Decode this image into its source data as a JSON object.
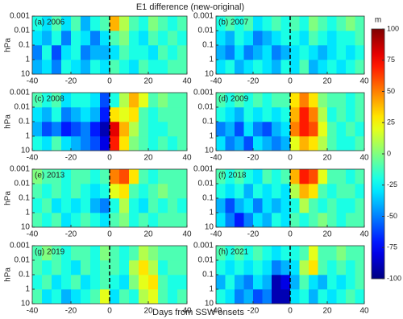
{
  "chart_data": {
    "type": "heatmap",
    "title": "E1 difference (new-original)",
    "xlabel": "Days from SSW onsets",
    "ylabel": "hPa",
    "x_edges": [
      -40,
      -35,
      -30,
      -25,
      -20,
      -15,
      -10,
      -5,
      0,
      5,
      10,
      15,
      20,
      25,
      30,
      35,
      40
    ],
    "y_edges": [
      10,
      1,
      0.1,
      0.01,
      0.001
    ],
    "xlim": [
      -40,
      40
    ],
    "ylim": [
      10,
      0.001
    ],
    "ylog": true,
    "xticks": [
      -40,
      -20,
      0,
      20,
      40
    ],
    "yticks": [
      0.001,
      0.01,
      0.1,
      1,
      10
    ],
    "vline": 0,
    "colormap": "jet",
    "colorbar": {
      "label": "m",
      "clim": [
        -100,
        100
      ],
      "ticks": [
        100,
        75,
        50,
        25,
        0,
        -25,
        -50,
        -75,
        -100
      ]
    },
    "panels": [
      {
        "label": "(a) 2006",
        "z": [
          [
            -40,
            -30,
            -50,
            -20,
            -30,
            -40,
            -20,
            -30,
            -10,
            -20,
            -30,
            -10,
            -20,
            -20,
            -10,
            -10
          ],
          [
            -50,
            -20,
            -60,
            -30,
            -20,
            -50,
            -40,
            -40,
            -30,
            -10,
            -20,
            -20,
            -30,
            -10,
            -20,
            -10
          ],
          [
            -30,
            -40,
            -20,
            -50,
            -20,
            -30,
            -50,
            -30,
            -10,
            0,
            -20,
            -30,
            -10,
            -20,
            -10,
            -20
          ],
          [
            -20,
            -30,
            -10,
            -30,
            -10,
            -40,
            -20,
            -10,
            40,
            10,
            -10,
            -20,
            0,
            -10,
            -20,
            -10
          ]
        ]
      },
      {
        "label": "(b) 2007",
        "z": [
          [
            -30,
            -20,
            -40,
            -30,
            -20,
            -30,
            -40,
            -20,
            -30,
            -10,
            -40,
            -30,
            -20,
            -30,
            -20,
            -10
          ],
          [
            -40,
            -50,
            -30,
            -50,
            -40,
            -30,
            -50,
            -40,
            -30,
            -20,
            -30,
            -40,
            -30,
            -20,
            -30,
            -20
          ],
          [
            -30,
            -40,
            -20,
            -30,
            -50,
            -40,
            -30,
            -20,
            -20,
            -30,
            -10,
            -20,
            -30,
            -20,
            -20,
            -10
          ],
          [
            -20,
            -10,
            -20,
            -10,
            -30,
            -20,
            -10,
            -20,
            -10,
            -20,
            0,
            -10,
            -20,
            -10,
            0,
            -10
          ]
        ]
      },
      {
        "label": "(c) 2008",
        "z": [
          [
            -20,
            -30,
            -10,
            -30,
            -40,
            -50,
            -60,
            -80,
            70,
            30,
            0,
            -10,
            -20,
            -10,
            -20,
            -10
          ],
          [
            -40,
            -60,
            -50,
            -70,
            -60,
            -50,
            -70,
            -90,
            80,
            40,
            10,
            -10,
            -20,
            -20,
            -10,
            -10
          ],
          [
            -30,
            -40,
            -20,
            -50,
            -40,
            -30,
            -40,
            -70,
            30,
            20,
            30,
            -10,
            -20,
            -10,
            -10,
            -10
          ],
          [
            -10,
            -20,
            -10,
            -30,
            -20,
            -20,
            -30,
            -60,
            -20,
            10,
            40,
            20,
            -10,
            0,
            -10,
            -10
          ]
        ]
      },
      {
        "label": "(d) 2009",
        "z": [
          [
            -30,
            -50,
            -40,
            -60,
            -30,
            -40,
            -50,
            -40,
            20,
            40,
            30,
            10,
            -10,
            -20,
            -20,
            -10
          ],
          [
            -50,
            -40,
            -60,
            -30,
            -50,
            -60,
            -40,
            -30,
            50,
            70,
            60,
            20,
            -10,
            -20,
            -10,
            -20
          ],
          [
            -20,
            -30,
            -40,
            -20,
            -30,
            -20,
            -30,
            -20,
            40,
            70,
            50,
            10,
            -20,
            -10,
            -20,
            -10
          ],
          [
            -10,
            -20,
            -10,
            -20,
            -10,
            -20,
            -10,
            -10,
            30,
            50,
            30,
            0,
            -10,
            -10,
            -20,
            -10
          ]
        ]
      },
      {
        "label": "(e) 2013",
        "z": [
          [
            -10,
            -20,
            -10,
            -30,
            -20,
            -10,
            -20,
            -30,
            -10,
            0,
            -20,
            -10,
            -20,
            -10,
            -10,
            -10
          ],
          [
            -20,
            -10,
            -30,
            -20,
            -30,
            -20,
            -40,
            -50,
            -20,
            10,
            -20,
            -30,
            -10,
            -20,
            -10,
            -20
          ],
          [
            -10,
            -20,
            -10,
            -20,
            -10,
            -20,
            -30,
            -20,
            20,
            30,
            -10,
            -20,
            -10,
            0,
            -10,
            -10
          ],
          [
            0,
            -10,
            -10,
            -20,
            -10,
            -10,
            -20,
            -10,
            50,
            60,
            30,
            -10,
            -20,
            -10,
            -10,
            -10
          ]
        ]
      },
      {
        "label": "(f) 2018",
        "z": [
          [
            -30,
            -50,
            -70,
            -50,
            -30,
            -40,
            -20,
            -30,
            -10,
            -20,
            -10,
            0,
            -10,
            -20,
            -10,
            -10
          ],
          [
            -40,
            -60,
            -40,
            -30,
            -50,
            -30,
            -40,
            -30,
            -20,
            10,
            -10,
            -20,
            -10,
            -20,
            -20,
            -10
          ],
          [
            -20,
            -30,
            -20,
            -40,
            -20,
            -30,
            -20,
            -30,
            10,
            40,
            30,
            -10,
            -20,
            -10,
            -10,
            -20
          ],
          [
            -10,
            -20,
            -10,
            -20,
            -30,
            -10,
            -20,
            -10,
            40,
            70,
            60,
            20,
            -10,
            -10,
            -20,
            -10
          ]
        ]
      },
      {
        "label": "(g) 2019",
        "z": [
          [
            -10,
            -30,
            -20,
            -40,
            -30,
            -20,
            -10,
            20,
            -30,
            -10,
            -20,
            10,
            20,
            -10,
            -20,
            -10
          ],
          [
            -20,
            -10,
            -30,
            -20,
            -10,
            -30,
            -20,
            -10,
            -20,
            -30,
            0,
            20,
            30,
            -10,
            -20,
            -20
          ],
          [
            -10,
            -20,
            -10,
            -20,
            -30,
            -10,
            -20,
            -10,
            -10,
            -20,
            10,
            30,
            10,
            -20,
            -10,
            -10
          ],
          [
            -10,
            0,
            -10,
            -20,
            -10,
            -10,
            -20,
            0,
            -10,
            -20,
            -10,
            10,
            0,
            -10,
            -10,
            -10
          ]
        ]
      },
      {
        "label": "(h) 2021",
        "z": [
          [
            -20,
            -30,
            -50,
            -40,
            -60,
            -50,
            -90,
            -90,
            -30,
            -20,
            -40,
            -20,
            -30,
            -20,
            -10,
            -20
          ],
          [
            -40,
            -20,
            -40,
            -50,
            -30,
            -40,
            -90,
            -80,
            -40,
            -10,
            -30,
            -40,
            -20,
            -30,
            -20,
            -10
          ],
          [
            -20,
            -30,
            -20,
            -30,
            -20,
            -30,
            -50,
            -40,
            -30,
            10,
            30,
            -10,
            -20,
            -10,
            -20,
            -10
          ],
          [
            -10,
            -20,
            -10,
            -20,
            -10,
            -20,
            -30,
            -20,
            -20,
            -10,
            20,
            -10,
            -10,
            0,
            -10,
            -10
          ]
        ]
      }
    ]
  }
}
